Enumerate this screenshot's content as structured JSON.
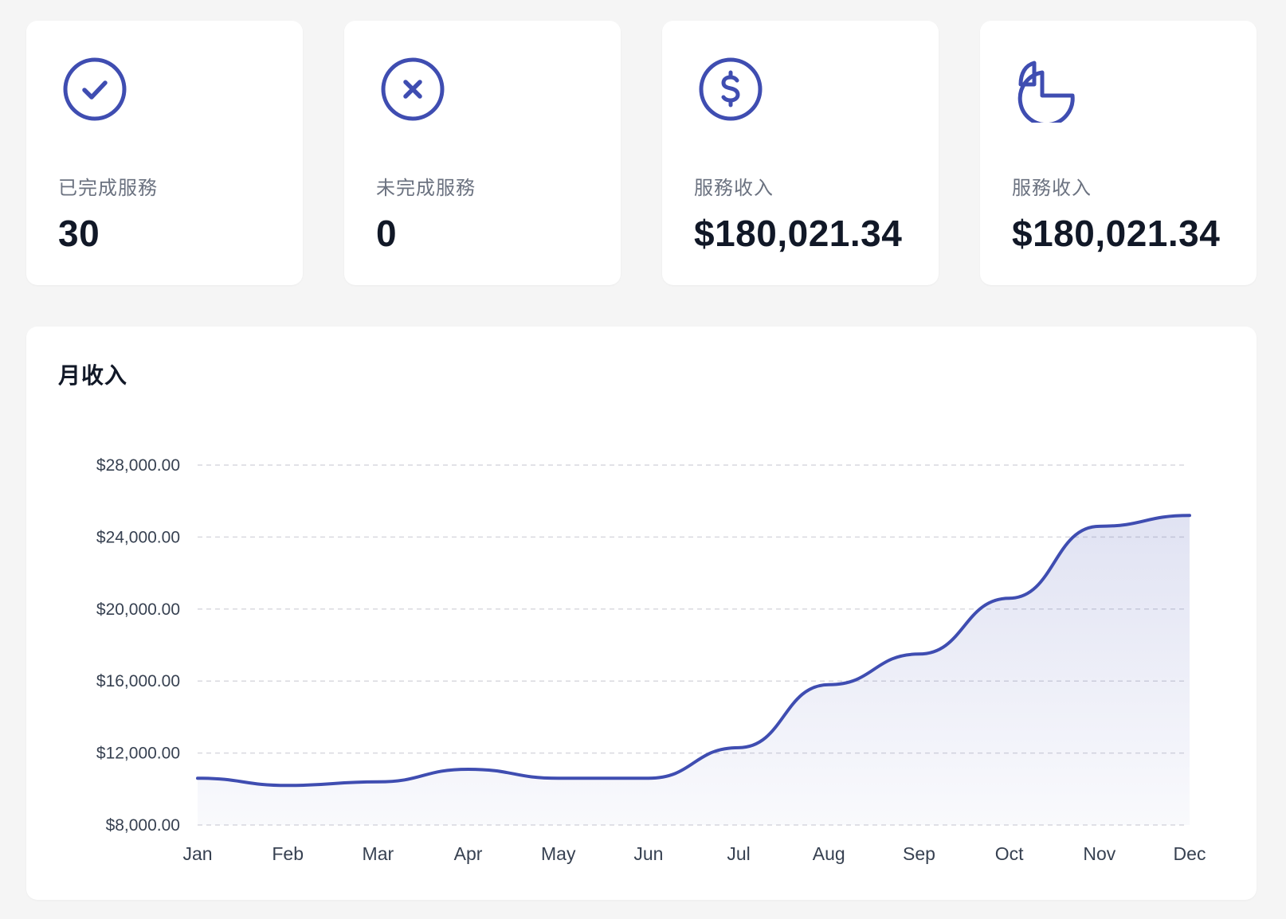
{
  "accent_color": "#3f4db1",
  "stats": [
    {
      "icon": "check-circle-icon",
      "label": "已完成服務",
      "value": "30"
    },
    {
      "icon": "x-circle-icon",
      "label": "未完成服務",
      "value": "0"
    },
    {
      "icon": "dollar-circle-icon",
      "label": "服務收入",
      "value": "$180,021.34"
    },
    {
      "icon": "pie-chart-icon",
      "label": "服務收入",
      "value": "$180,021.34"
    }
  ],
  "chart": {
    "title": "月收入"
  },
  "chart_data": {
    "type": "area",
    "title": "月收入",
    "categories": [
      "Jan",
      "Feb",
      "Mar",
      "Apr",
      "May",
      "Jun",
      "Jul",
      "Aug",
      "Sep",
      "Oct",
      "Nov",
      "Dec"
    ],
    "series": [
      {
        "values": [
          10600,
          10200,
          10400,
          11100,
          10600,
          10600,
          12300,
          15800,
          17500,
          20600,
          24600,
          25200
        ]
      }
    ],
    "yticks": [
      8000,
      12000,
      16000,
      20000,
      24000,
      28000
    ],
    "ytick_labels": [
      "$8,000.00",
      "$12,000.00",
      "$16,000.00",
      "$20,000.00",
      "$24,000.00",
      "$28,000.00"
    ],
    "ylim": [
      8000,
      28000
    ],
    "grid": true,
    "grid_style": "dashed",
    "legend": "none",
    "line_color": "#3f4db1"
  }
}
